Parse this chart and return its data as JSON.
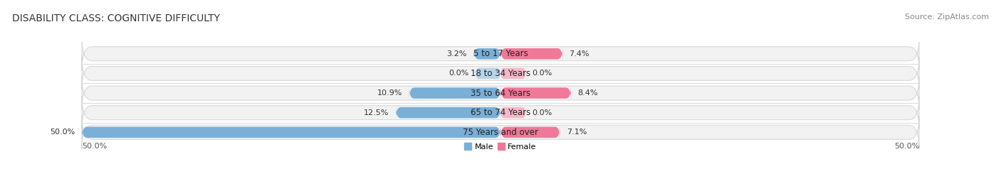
{
  "title": "DISABILITY CLASS: COGNITIVE DIFFICULTY",
  "source": "Source: ZipAtlas.com",
  "categories": [
    "5 to 17 Years",
    "18 to 34 Years",
    "35 to 64 Years",
    "65 to 74 Years",
    "75 Years and over"
  ],
  "male_values": [
    3.2,
    0.0,
    10.9,
    12.5,
    50.0
  ],
  "female_values": [
    7.4,
    0.0,
    8.4,
    0.0,
    7.1
  ],
  "male_color": "#7aafd6",
  "female_color": "#f07898",
  "female_color_light": "#f5b8c8",
  "bar_bg_color": "#f2f2f2",
  "bar_border_color": "#d8d8d8",
  "x_max": 50.0,
  "axis_label_left": "50.0%",
  "axis_label_right": "50.0%",
  "title_fontsize": 10,
  "source_fontsize": 8,
  "label_fontsize": 8,
  "category_fontsize": 8.5
}
